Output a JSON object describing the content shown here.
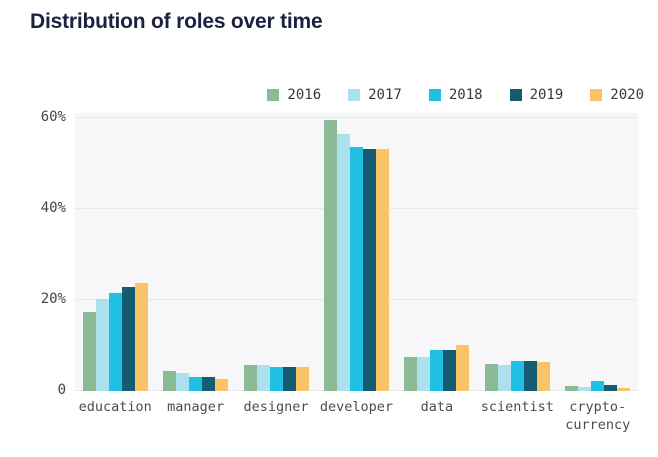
{
  "title": "Distribution of roles over time",
  "colors": {
    "title": "#1a2240",
    "plot_background": "#f7f7f9",
    "gridline": "#e9e9ed",
    "axis_text": "#454545",
    "legend_text": "#383838"
  },
  "chart_data": {
    "type": "bar",
    "title": "Distribution of roles over time",
    "categories": [
      "education",
      "manager",
      "designer",
      "developer",
      "data",
      "scientist",
      "crypto-currency"
    ],
    "tick_labels": [
      "education",
      "manager",
      "designer",
      "developer",
      "data",
      "scientist",
      "crypto-\ncurrency"
    ],
    "series": [
      {
        "name": "2016",
        "color": "#8bbb95",
        "values": [
          17.3,
          4.4,
          5.6,
          59.4,
          7.5,
          6.0,
          1.1
        ]
      },
      {
        "name": "2017",
        "color": "#abe1ef",
        "values": [
          20.3,
          3.9,
          5.6,
          56.3,
          7.5,
          5.8,
          0.9
        ]
      },
      {
        "name": "2018",
        "color": "#1fc0e3",
        "values": [
          21.5,
          3.1,
          5.2,
          53.5,
          8.9,
          6.5,
          2.2
        ]
      },
      {
        "name": "2019",
        "color": "#145c72",
        "values": [
          22.8,
          3.1,
          5.2,
          53.2,
          8.9,
          6.5,
          1.3
        ]
      },
      {
        "name": "2020",
        "color": "#f9c468",
        "values": [
          23.7,
          2.6,
          5.2,
          53.2,
          10.0,
          6.4,
          0.7
        ]
      }
    ],
    "xlabel": "",
    "ylabel": "",
    "ylim": [
      0,
      61
    ],
    "yticks": [
      {
        "value": 0,
        "label": "0"
      },
      {
        "value": 20,
        "label": "20%"
      },
      {
        "value": 40,
        "label": "40%"
      },
      {
        "value": 60,
        "label": "60%"
      }
    ],
    "grid": true,
    "legend_position": "top-right"
  }
}
